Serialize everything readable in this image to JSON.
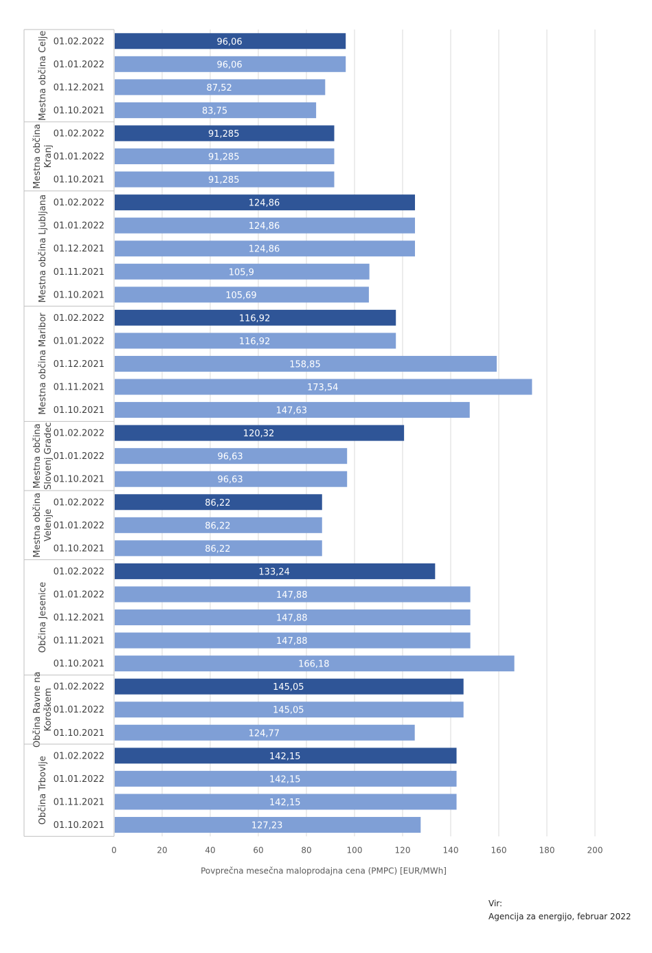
{
  "chart_data": {
    "type": "bar",
    "orientation": "horizontal",
    "xlabel": "Povprečna mesečna maloprodajna cena (PMPC) [EUR/MWh]",
    "xlim": [
      0,
      200
    ],
    "xticks": [
      "0",
      "20",
      "40",
      "60",
      "80",
      "100",
      "120",
      "140",
      "160",
      "180",
      "200"
    ],
    "grid": true,
    "colors": {
      "latest": "#2f5597",
      "other": "#7f9fd6"
    },
    "groups": [
      {
        "name": "Mestna občina Celje",
        "name_lines": [
          "Mestna občina Celje"
        ],
        "bars": [
          {
            "date": "01.02.2022",
            "value": 96.06,
            "label": "96,06"
          },
          {
            "date": "01.01.2022",
            "value": 96.06,
            "label": "96,06"
          },
          {
            "date": "01.12.2021",
            "value": 87.52,
            "label": "87,52"
          },
          {
            "date": "01.10.2021",
            "value": 83.75,
            "label": "83,75"
          }
        ]
      },
      {
        "name": "Mestna občina Kranj",
        "name_lines": [
          "Mestna občina",
          "Kranj"
        ],
        "bars": [
          {
            "date": "01.02.2022",
            "value": 91.285,
            "label": "91,285"
          },
          {
            "date": "01.01.2022",
            "value": 91.285,
            "label": "91,285"
          },
          {
            "date": "01.10.2021",
            "value": 91.285,
            "label": "91,285"
          }
        ]
      },
      {
        "name": "Mestna občina Ljubljana",
        "name_lines": [
          "Mestna občina Ljubljana"
        ],
        "bars": [
          {
            "date": "01.02.2022",
            "value": 124.86,
            "label": "124,86"
          },
          {
            "date": "01.01.2022",
            "value": 124.86,
            "label": "124,86"
          },
          {
            "date": "01.12.2021",
            "value": 124.86,
            "label": "124,86"
          },
          {
            "date": "01.11.2021",
            "value": 105.9,
            "label": "105,9"
          },
          {
            "date": "01.10.2021",
            "value": 105.69,
            "label": "105,69"
          }
        ]
      },
      {
        "name": "Mestna občina Maribor",
        "name_lines": [
          "Mestna občina Maribor"
        ],
        "bars": [
          {
            "date": "01.02.2022",
            "value": 116.92,
            "label": "116,92"
          },
          {
            "date": "01.01.2022",
            "value": 116.92,
            "label": "116,92"
          },
          {
            "date": "01.12.2021",
            "value": 158.85,
            "label": "158,85"
          },
          {
            "date": "01.11.2021",
            "value": 173.54,
            "label": "173,54"
          },
          {
            "date": "01.10.2021",
            "value": 147.63,
            "label": "147,63"
          }
        ]
      },
      {
        "name": "Mestna občina Slovenj Gradec",
        "name_lines": [
          "Mestna občina",
          "Slovenj Gradec"
        ],
        "bars": [
          {
            "date": "01.02.2022",
            "value": 120.32,
            "label": "120,32"
          },
          {
            "date": "01.01.2022",
            "value": 96.63,
            "label": "96,63"
          },
          {
            "date": "01.10.2021",
            "value": 96.63,
            "label": "96,63"
          }
        ]
      },
      {
        "name": "Mestna občina Velenje",
        "name_lines": [
          "Mestna občina",
          "Velenje"
        ],
        "bars": [
          {
            "date": "01.02.2022",
            "value": 86.22,
            "label": "86,22"
          },
          {
            "date": "01.01.2022",
            "value": 86.22,
            "label": "86,22"
          },
          {
            "date": "01.10.2021",
            "value": 86.22,
            "label": "86,22"
          }
        ]
      },
      {
        "name": "Občina Jesenice",
        "name_lines": [
          "Občina Jesenice"
        ],
        "bars": [
          {
            "date": "01.02.2022",
            "value": 133.24,
            "label": "133,24"
          },
          {
            "date": "01.01.2022",
            "value": 147.88,
            "label": "147,88"
          },
          {
            "date": "01.12.2021",
            "value": 147.88,
            "label": "147,88"
          },
          {
            "date": "01.11.2021",
            "value": 147.88,
            "label": "147,88"
          },
          {
            "date": "01.10.2021",
            "value": 166.18,
            "label": "166,18"
          }
        ]
      },
      {
        "name": "Občina Ravne na Koroškem",
        "name_lines": [
          "Občina Ravne na",
          "Koroškem"
        ],
        "bars": [
          {
            "date": "01.02.2022",
            "value": 145.05,
            "label": "145,05"
          },
          {
            "date": "01.01.2022",
            "value": 145.05,
            "label": "145,05"
          },
          {
            "date": "01.10.2021",
            "value": 124.77,
            "label": "124,77"
          }
        ]
      },
      {
        "name": "Občina Trbovlje",
        "name_lines": [
          "Občina Trbovlje"
        ],
        "bars": [
          {
            "date": "01.02.2022",
            "value": 142.15,
            "label": "142,15"
          },
          {
            "date": "01.01.2022",
            "value": 142.15,
            "label": "142,15"
          },
          {
            "date": "01.11.2021",
            "value": 142.15,
            "label": "142,15"
          },
          {
            "date": "01.10.2021",
            "value": 127.23,
            "label": "127,23"
          }
        ]
      }
    ]
  },
  "source": {
    "label": "Vir:",
    "text": "Agencija za energijo, februar 2022"
  }
}
